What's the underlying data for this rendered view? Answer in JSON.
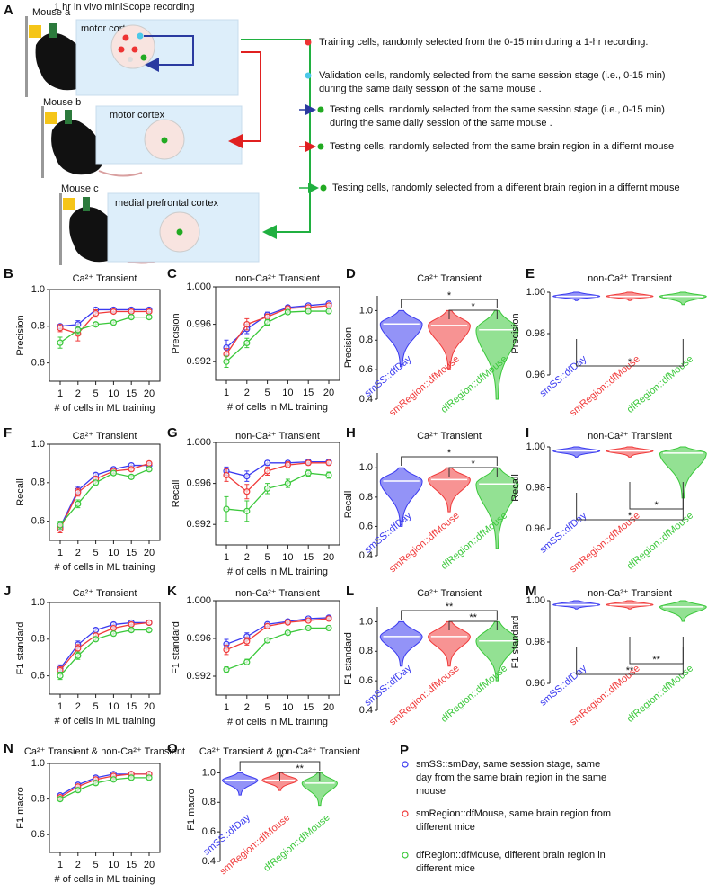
{
  "panel_a": {
    "label": "A",
    "recording": "1 hr in vivo miniScope recording",
    "mice": [
      {
        "name": "Mouse a",
        "region": "motor cortex"
      },
      {
        "name": "Mouse b",
        "region": "motor cortex"
      },
      {
        "name": "Mouse c",
        "region": "medial prefrontal cortex"
      }
    ],
    "legend": [
      {
        "lines": [
          "Training cells, randomly selected from the 0-15 min during a 1-hr recording."
        ]
      },
      {
        "lines": [
          "Validation cells, randomly selected from the same session stage (i.e., 0-15 min)",
          "during the same daily session of the same mouse ."
        ]
      },
      {
        "lines": [
          "Testing cells, randomly selected from the same session stage (i.e., 0-15 min)",
          "during the same daily session of the same mouse ."
        ]
      },
      {
        "lines": [
          "Testing cells, randomly selected from the same brain region in a differnt mouse"
        ]
      },
      {
        "lines": [
          "Testing cells, randomly selected from a different brain region in a differnt mouse"
        ]
      }
    ]
  },
  "chart_data": [
    {
      "type": "line",
      "panel": "B",
      "title": "Ca²⁺ Transient",
      "ylabel": "Precision",
      "xlabel": "# of cells in ML training",
      "categories": [
        1,
        2,
        5,
        10,
        15,
        20
      ],
      "ylim": [
        0.5,
        1.0
      ],
      "yticks": [
        {
          "value": 1,
          "label": "1.0"
        },
        0.8,
        0.6
      ],
      "series": [
        {
          "color": "#3a3af0",
          "values": [
            0.8,
            0.81,
            0.89,
            0.89,
            0.89,
            0.89
          ],
          "errors": [
            0.01,
            0.02,
            0.01,
            0.01,
            0.01,
            0.01
          ]
        },
        {
          "color": "#f03a3a",
          "values": [
            0.79,
            0.76,
            0.87,
            0.88,
            0.88,
            0.88
          ],
          "errors": [
            0.02,
            0.04,
            0.02,
            0.01,
            0.01,
            0.01
          ]
        },
        {
          "color": "#3ac83a",
          "values": [
            0.71,
            0.78,
            0.81,
            0.82,
            0.85,
            0.85
          ],
          "errors": [
            0.03,
            0.02,
            0.01,
            0.01,
            0.01,
            0.01
          ]
        }
      ]
    },
    {
      "type": "line",
      "panel": "C",
      "title": "non-Ca²⁺ Transient",
      "ylabel": "Precision",
      "xlabel": "# of cells in ML training",
      "categories": [
        1,
        2,
        5,
        10,
        15,
        20
      ],
      "ylim": [
        0.99,
        1.0
      ],
      "yticks": [
        {
          "value": 1,
          "label": "1.000"
        },
        0.996,
        0.992
      ],
      "series": [
        {
          "color": "#3a3af0",
          "values": [
            0.9935,
            0.9955,
            0.997,
            0.9978,
            0.998,
            0.9982
          ],
          "errors": [
            0.0008,
            0.0005,
            0.0003,
            0.0002,
            0.0002,
            0.0002
          ]
        },
        {
          "color": "#f03a3a",
          "values": [
            0.9928,
            0.996,
            0.9968,
            0.9977,
            0.9978,
            0.998
          ],
          "errors": [
            0.0006,
            0.0006,
            0.0003,
            0.0002,
            0.0002,
            0.0002
          ]
        },
        {
          "color": "#3ac83a",
          "values": [
            0.992,
            0.994,
            0.9962,
            0.9973,
            0.9974,
            0.9974
          ],
          "errors": [
            0.0006,
            0.0005,
            0.0003,
            0.0002,
            0.0002,
            0.0002
          ]
        }
      ]
    },
    {
      "type": "violin",
      "panel": "D",
      "title": "Ca²⁺ Transient",
      "ylabel": "Precision",
      "categories": [
        "smSS::dfDay",
        "smRegion::dfMouse",
        "dfRegion::dfMouse"
      ],
      "colors": [
        "#3a3af0",
        "#f03a3a",
        "#3ac83a"
      ],
      "values": [
        0.91,
        0.9,
        0.87
      ],
      "mins": [
        0.62,
        0.6,
        0.4
      ],
      "maxs": [
        1.0,
        1.0,
        1.0
      ],
      "ylim": [
        0.4,
        1.1
      ],
      "yticks": [
        {
          "value": 1,
          "label": "1.0"
        },
        0.8,
        0.6,
        0.4
      ],
      "bracket_side": "above",
      "brackets": [
        {
          "from": 0,
          "to": 2,
          "label": "*"
        },
        {
          "from": 1,
          "to": 2,
          "label": "*"
        }
      ]
    },
    {
      "type": "violin",
      "panel": "E",
      "title": "non-Ca²⁺ Transient",
      "ylabel": "Precision",
      "categories": [
        "smSS::dfDay",
        "smRegion::dfMouse",
        "dfRegion::dfMouse"
      ],
      "colors": [
        "#3a3af0",
        "#f03a3a",
        "#3ac83a"
      ],
      "values": [
        0.998,
        0.998,
        0.998
      ],
      "mins": [
        0.996,
        0.996,
        0.994
      ],
      "maxs": [
        1.0,
        1.0,
        1.0
      ],
      "ylim": [
        0.96,
        1.0
      ],
      "yticks": [
        {
          "value": 1,
          "label": "1.00"
        },
        0.98,
        0.96
      ],
      "bracket_side": "below",
      "brackets": [
        {
          "from": 0,
          "to": 2,
          "label": "*"
        }
      ]
    },
    {
      "type": "line",
      "panel": "F",
      "title": "Ca²⁺ Transient",
      "ylabel": "Recall",
      "xlabel": "# of cells in ML training",
      "categories": [
        1,
        2,
        5,
        10,
        15,
        20
      ],
      "ylim": [
        0.5,
        1.0
      ],
      "yticks": [
        {
          "value": 1,
          "label": "1.0"
        },
        0.8,
        0.6
      ],
      "series": [
        {
          "color": "#3a3af0",
          "values": [
            0.57,
            0.76,
            0.84,
            0.87,
            0.89,
            0.89
          ],
          "errors": [
            0.02,
            0.02,
            0.01,
            0.01,
            0.01,
            0.01
          ]
        },
        {
          "color": "#f03a3a",
          "values": [
            0.56,
            0.75,
            0.82,
            0.86,
            0.87,
            0.9
          ],
          "errors": [
            0.02,
            0.02,
            0.01,
            0.01,
            0.01,
            0.01
          ]
        },
        {
          "color": "#3ac83a",
          "values": [
            0.58,
            0.69,
            0.8,
            0.85,
            0.83,
            0.87
          ],
          "errors": [
            0.02,
            0.02,
            0.01,
            0.01,
            0.01,
            0.01
          ]
        }
      ]
    },
    {
      "type": "line",
      "panel": "G",
      "title": "non-Ca²⁺ Transient",
      "ylabel": "Recall",
      "xlabel": "# of cells in ML training",
      "categories": [
        1,
        2,
        5,
        10,
        15,
        20
      ],
      "ylim": [
        0.99,
        1.0
      ],
      "yticks": [
        {
          "value": 1,
          "label": "1.000"
        },
        0.996,
        0.992
      ],
      "series": [
        {
          "color": "#3a3af0",
          "values": [
            0.9972,
            0.9967,
            0.998,
            0.998,
            0.9981,
            0.9981
          ],
          "errors": [
            0.0004,
            0.0005,
            0.0002,
            0.0002,
            0.0002,
            0.0002
          ]
        },
        {
          "color": "#f03a3a",
          "values": [
            0.9968,
            0.9952,
            0.9972,
            0.9978,
            0.998,
            0.998
          ],
          "errors": [
            0.0006,
            0.0007,
            0.0004,
            0.0003,
            0.0002,
            0.0002
          ]
        },
        {
          "color": "#3ac83a",
          "values": [
            0.9935,
            0.9933,
            0.9955,
            0.996,
            0.997,
            0.9968
          ],
          "errors": [
            0.0012,
            0.001,
            0.0005,
            0.0004,
            0.0003,
            0.0003
          ]
        }
      ]
    },
    {
      "type": "violin",
      "panel": "H",
      "title": "Ca²⁺ Transient",
      "ylabel": "Recall",
      "categories": [
        "smSS::dfDay",
        "smRegion::dfMouse",
        "dfRegion::dfMouse"
      ],
      "colors": [
        "#3a3af0",
        "#f03a3a",
        "#3ac83a"
      ],
      "values": [
        0.91,
        0.92,
        0.89
      ],
      "mins": [
        0.6,
        0.7,
        0.45
      ],
      "maxs": [
        1.0,
        1.0,
        1.0
      ],
      "ylim": [
        0.4,
        1.1
      ],
      "yticks": [
        {
          "value": 1,
          "label": "1.0"
        },
        0.8,
        0.6,
        0.4
      ],
      "bracket_side": "above",
      "brackets": [
        {
          "from": 0,
          "to": 2,
          "label": "*"
        },
        {
          "from": 1,
          "to": 2,
          "label": "*"
        }
      ]
    },
    {
      "type": "violin",
      "panel": "I",
      "title": "non-Ca²⁺ Transient",
      "ylabel": "Recall",
      "categories": [
        "smSS::dfDay",
        "smRegion::dfMouse",
        "dfRegion::dfMouse"
      ],
      "colors": [
        "#3a3af0",
        "#f03a3a",
        "#3ac83a"
      ],
      "values": [
        0.998,
        0.998,
        0.997
      ],
      "mins": [
        0.995,
        0.995,
        0.975
      ],
      "maxs": [
        1.0,
        1.0,
        1.0
      ],
      "ylim": [
        0.96,
        1.0
      ],
      "yticks": [
        {
          "value": 1,
          "label": "1.00"
        },
        0.98,
        0.96
      ],
      "bracket_side": "below",
      "brackets": [
        {
          "from": 0,
          "to": 2,
          "label": "*"
        },
        {
          "from": 1,
          "to": 2,
          "label": "*"
        }
      ]
    },
    {
      "type": "line",
      "panel": "J",
      "title": "Ca²⁺ Transient",
      "ylabel": "F1 standard",
      "xlabel": "# of cells in ML training",
      "categories": [
        1,
        2,
        5,
        10,
        15,
        20
      ],
      "ylim": [
        0.5,
        1.0
      ],
      "yticks": [
        {
          "value": 1,
          "label": "1.0"
        },
        0.8,
        0.6
      ],
      "series": [
        {
          "color": "#3a3af0",
          "values": [
            0.64,
            0.77,
            0.85,
            0.88,
            0.89,
            0.89
          ],
          "errors": [
            0.02,
            0.02,
            0.01,
            0.01,
            0.01,
            0.01
          ]
        },
        {
          "color": "#f03a3a",
          "values": [
            0.63,
            0.75,
            0.82,
            0.86,
            0.88,
            0.89
          ],
          "errors": [
            0.02,
            0.02,
            0.01,
            0.01,
            0.01,
            0.01
          ]
        },
        {
          "color": "#3ac83a",
          "values": [
            0.6,
            0.71,
            0.8,
            0.83,
            0.85,
            0.85
          ],
          "errors": [
            0.02,
            0.02,
            0.01,
            0.01,
            0.01,
            0.01
          ]
        }
      ]
    },
    {
      "type": "line",
      "panel": "K",
      "title": "non-Ca²⁺ Transient",
      "ylabel": "F1 standard",
      "xlabel": "# of cells in ML training",
      "categories": [
        1,
        2,
        5,
        10,
        15,
        20
      ],
      "ylim": [
        0.99,
        1.0
      ],
      "yticks": [
        {
          "value": 1,
          "label": "1.000"
        },
        0.996,
        0.992
      ],
      "series": [
        {
          "color": "#3a3af0",
          "values": [
            0.9954,
            0.9962,
            0.9975,
            0.9978,
            0.9981,
            0.9982
          ],
          "errors": [
            0.0005,
            0.0004,
            0.0002,
            0.0002,
            0.0001,
            0.0001
          ]
        },
        {
          "color": "#f03a3a",
          "values": [
            0.9948,
            0.9957,
            0.9973,
            0.9977,
            0.9979,
            0.9981
          ],
          "errors": [
            0.0005,
            0.0004,
            0.0002,
            0.0002,
            0.0001,
            0.0001
          ]
        },
        {
          "color": "#3ac83a",
          "values": [
            0.9927,
            0.9935,
            0.9958,
            0.9966,
            0.9971,
            0.9971
          ],
          "errors": [
            0.0003,
            0.0003,
            0.0002,
            0.0002,
            0.0001,
            0.0001
          ]
        }
      ]
    },
    {
      "type": "violin",
      "panel": "L",
      "title": "Ca²⁺ Transient",
      "ylabel": "F1 standard",
      "categories": [
        "smSS::dfDay",
        "smRegion::dfMouse",
        "dfRegion::dfMouse"
      ],
      "colors": [
        "#3a3af0",
        "#f03a3a",
        "#3ac83a"
      ],
      "values": [
        0.9,
        0.9,
        0.87
      ],
      "mins": [
        0.7,
        0.7,
        0.6
      ],
      "maxs": [
        1.0,
        1.0,
        1.0
      ],
      "ylim": [
        0.4,
        1.1
      ],
      "yticks": [
        {
          "value": 1,
          "label": "1.0"
        },
        0.8,
        0.6,
        0.4
      ],
      "bracket_side": "above",
      "brackets": [
        {
          "from": 0,
          "to": 2,
          "label": "**"
        },
        {
          "from": 1,
          "to": 2,
          "label": "**"
        }
      ]
    },
    {
      "type": "violin",
      "panel": "M",
      "title": "non-Ca²⁺ Transient",
      "ylabel": "F1 standard",
      "categories": [
        "smSS::dfDay",
        "smRegion::dfMouse",
        "dfRegion::dfMouse"
      ],
      "colors": [
        "#3a3af0",
        "#f03a3a",
        "#3ac83a"
      ],
      "values": [
        0.998,
        0.998,
        0.997
      ],
      "mins": [
        0.996,
        0.996,
        0.99
      ],
      "maxs": [
        1.0,
        1.0,
        1.0
      ],
      "ylim": [
        0.96,
        1.0
      ],
      "yticks": [
        {
          "value": 1,
          "label": "1.00"
        },
        0.98,
        0.96
      ],
      "bracket_side": "below",
      "brackets": [
        {
          "from": 0,
          "to": 2,
          "label": "**"
        },
        {
          "from": 1,
          "to": 2,
          "label": "**"
        }
      ]
    },
    {
      "type": "line",
      "panel": "N",
      "title": "Ca²⁺ Transient & non-Ca²⁺ Transient",
      "ylabel": "F1 macro",
      "xlabel": "# of cells in ML training",
      "categories": [
        1,
        2,
        5,
        10,
        15,
        20
      ],
      "ylim": [
        0.5,
        1.0
      ],
      "yticks": [
        {
          "value": 1,
          "label": "1.0"
        },
        0.8,
        0.6
      ],
      "series": [
        {
          "color": "#3a3af0",
          "values": [
            0.82,
            0.88,
            0.92,
            0.94,
            0.94,
            0.94
          ],
          "errors": [
            0.01,
            0.01,
            0.01,
            0.01,
            0.01,
            0.01
          ]
        },
        {
          "color": "#f03a3a",
          "values": [
            0.81,
            0.87,
            0.91,
            0.93,
            0.94,
            0.94
          ],
          "errors": [
            0.01,
            0.01,
            0.01,
            0.01,
            0.01,
            0.01
          ]
        },
        {
          "color": "#3ac83a",
          "values": [
            0.8,
            0.85,
            0.89,
            0.91,
            0.92,
            0.92
          ],
          "errors": [
            0.01,
            0.01,
            0.01,
            0.01,
            0.01,
            0.01
          ]
        }
      ]
    },
    {
      "type": "violin",
      "panel": "O",
      "title": "Ca²⁺ Transient & non-Ca²⁺ Transient",
      "ylabel": "F1 macro",
      "categories": [
        "smSS::dfDay",
        "smRegion::dfMouse",
        "dfRegion::dfMouse"
      ],
      "colors": [
        "#3a3af0",
        "#f03a3a",
        "#3ac83a"
      ],
      "values": [
        0.95,
        0.95,
        0.93
      ],
      "mins": [
        0.85,
        0.88,
        0.78
      ],
      "maxs": [
        1.0,
        1.0,
        1.0
      ],
      "ylim": [
        0.4,
        1.1
      ],
      "yticks": [
        {
          "value": 1,
          "label": "1.0"
        },
        0.8,
        0.6,
        0.4
      ],
      "bracket_side": "above",
      "brackets": [
        {
          "from": 0,
          "to": 2,
          "label": "**"
        },
        {
          "from": 1,
          "to": 2,
          "label": "**"
        }
      ]
    }
  ],
  "panel_p": {
    "label": "P",
    "items": [
      {
        "color": "#3a3af0",
        "lines": [
          "smSS::smDay, same session stage, same",
          "day from the same brain region in the same",
          "mouse"
        ]
      },
      {
        "color": "#f03a3a",
        "lines": [
          "smRegion::dfMouse, same brain region from",
          "different mice"
        ]
      },
      {
        "color": "#3ac83a",
        "lines": [
          "dfRegion::dfMouse, different brain region in",
          "different mice"
        ]
      }
    ]
  }
}
